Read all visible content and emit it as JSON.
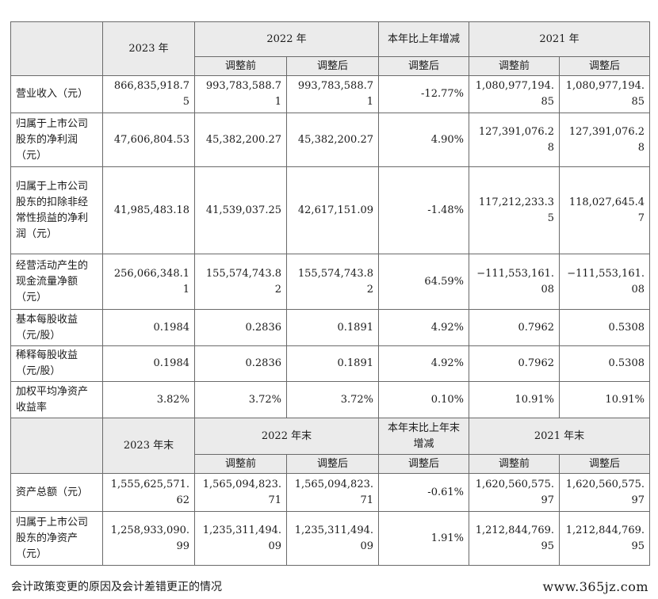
{
  "table1": {
    "header": {
      "col_2023": "2023 年",
      "col_2022": "2022 年",
      "col_change": "本年比上年增减",
      "col_2021": "2021 年",
      "sub_before": "调整前",
      "sub_after": "调整后",
      "sub_change_after": "调整后"
    },
    "rows": [
      {
        "label": "营业收入（元）",
        "v2023": "866,835,918.75",
        "v2022_before": "993,783,588.71",
        "v2022_after": "993,783,588.71",
        "change": "-12.77%",
        "v2021_before": "1,080,977,194.85",
        "v2021_after": "1,080,977,194.85"
      },
      {
        "label": "归属于上市公司股东的净利润（元）",
        "v2023": "47,606,804.53",
        "v2022_before": "45,382,200.27",
        "v2022_after": "45,382,200.27",
        "change": "4.90%",
        "v2021_before": "127,391,076.28",
        "v2021_after": "127,391,076.28"
      },
      {
        "label": "归属于上市公司股东的扣除非经常性损益的净利润（元）",
        "v2023": "41,985,483.18",
        "v2022_before": "41,539,037.25",
        "v2022_after": "42,617,151.09",
        "change": "-1.48%",
        "v2021_before": "117,212,233.35",
        "v2021_after": "118,027,645.47"
      },
      {
        "label": "经营活动产生的现金流量净额（元）",
        "v2023": "256,066,348.11",
        "v2022_before": "155,574,743.82",
        "v2022_after": "155,574,743.82",
        "change": "64.59%",
        "v2021_before": "−111,553,161.08",
        "v2021_after": "−111,553,161.08"
      },
      {
        "label": "基本每股收益（元/股）",
        "v2023": "0.1984",
        "v2022_before": "0.2836",
        "v2022_after": "0.1891",
        "change": "4.92%",
        "v2021_before": "0.7962",
        "v2021_after": "0.5308"
      },
      {
        "label": "稀释每股收益（元/股）",
        "v2023": "0.1984",
        "v2022_before": "0.2836",
        "v2022_after": "0.1891",
        "change": "4.92%",
        "v2021_before": "0.7962",
        "v2021_after": "0.5308"
      },
      {
        "label": "加权平均净资产收益率",
        "v2023": "3.82%",
        "v2022_before": "3.72%",
        "v2022_after": "3.72%",
        "change": "0.10%",
        "v2021_before": "10.91%",
        "v2021_after": "10.91%"
      }
    ]
  },
  "table2": {
    "header": {
      "col_2023": "2023 年末",
      "col_2022": "2022 年末",
      "col_change": "本年末比上年末增减",
      "col_2021": "2021 年末",
      "sub_before": "调整前",
      "sub_after": "调整后",
      "sub_change_after": "调整后"
    },
    "rows": [
      {
        "label": "资产总额（元）",
        "v2023": "1,555,625,571.62",
        "v2022_before": "1,565,094,823.71",
        "v2022_after": "1,565,094,823.71",
        "change": "-0.61%",
        "v2021_before": "1,620,560,575.97",
        "v2021_after": "1,620,560,575.97"
      },
      {
        "label": "归属于上市公司股东的净资产（元）",
        "v2023": "1,258,933,090.99",
        "v2022_before": "1,235,311,494.09",
        "v2022_after": "1,235,311,494.09",
        "change": "1.91%",
        "v2021_before": "1,212,844,769.95",
        "v2021_after": "1,212,844,769.95"
      }
    ]
  },
  "footer_text": "会计政策变更的原因及会计差错更正的情况",
  "watermark_text": "www.365jz.com"
}
